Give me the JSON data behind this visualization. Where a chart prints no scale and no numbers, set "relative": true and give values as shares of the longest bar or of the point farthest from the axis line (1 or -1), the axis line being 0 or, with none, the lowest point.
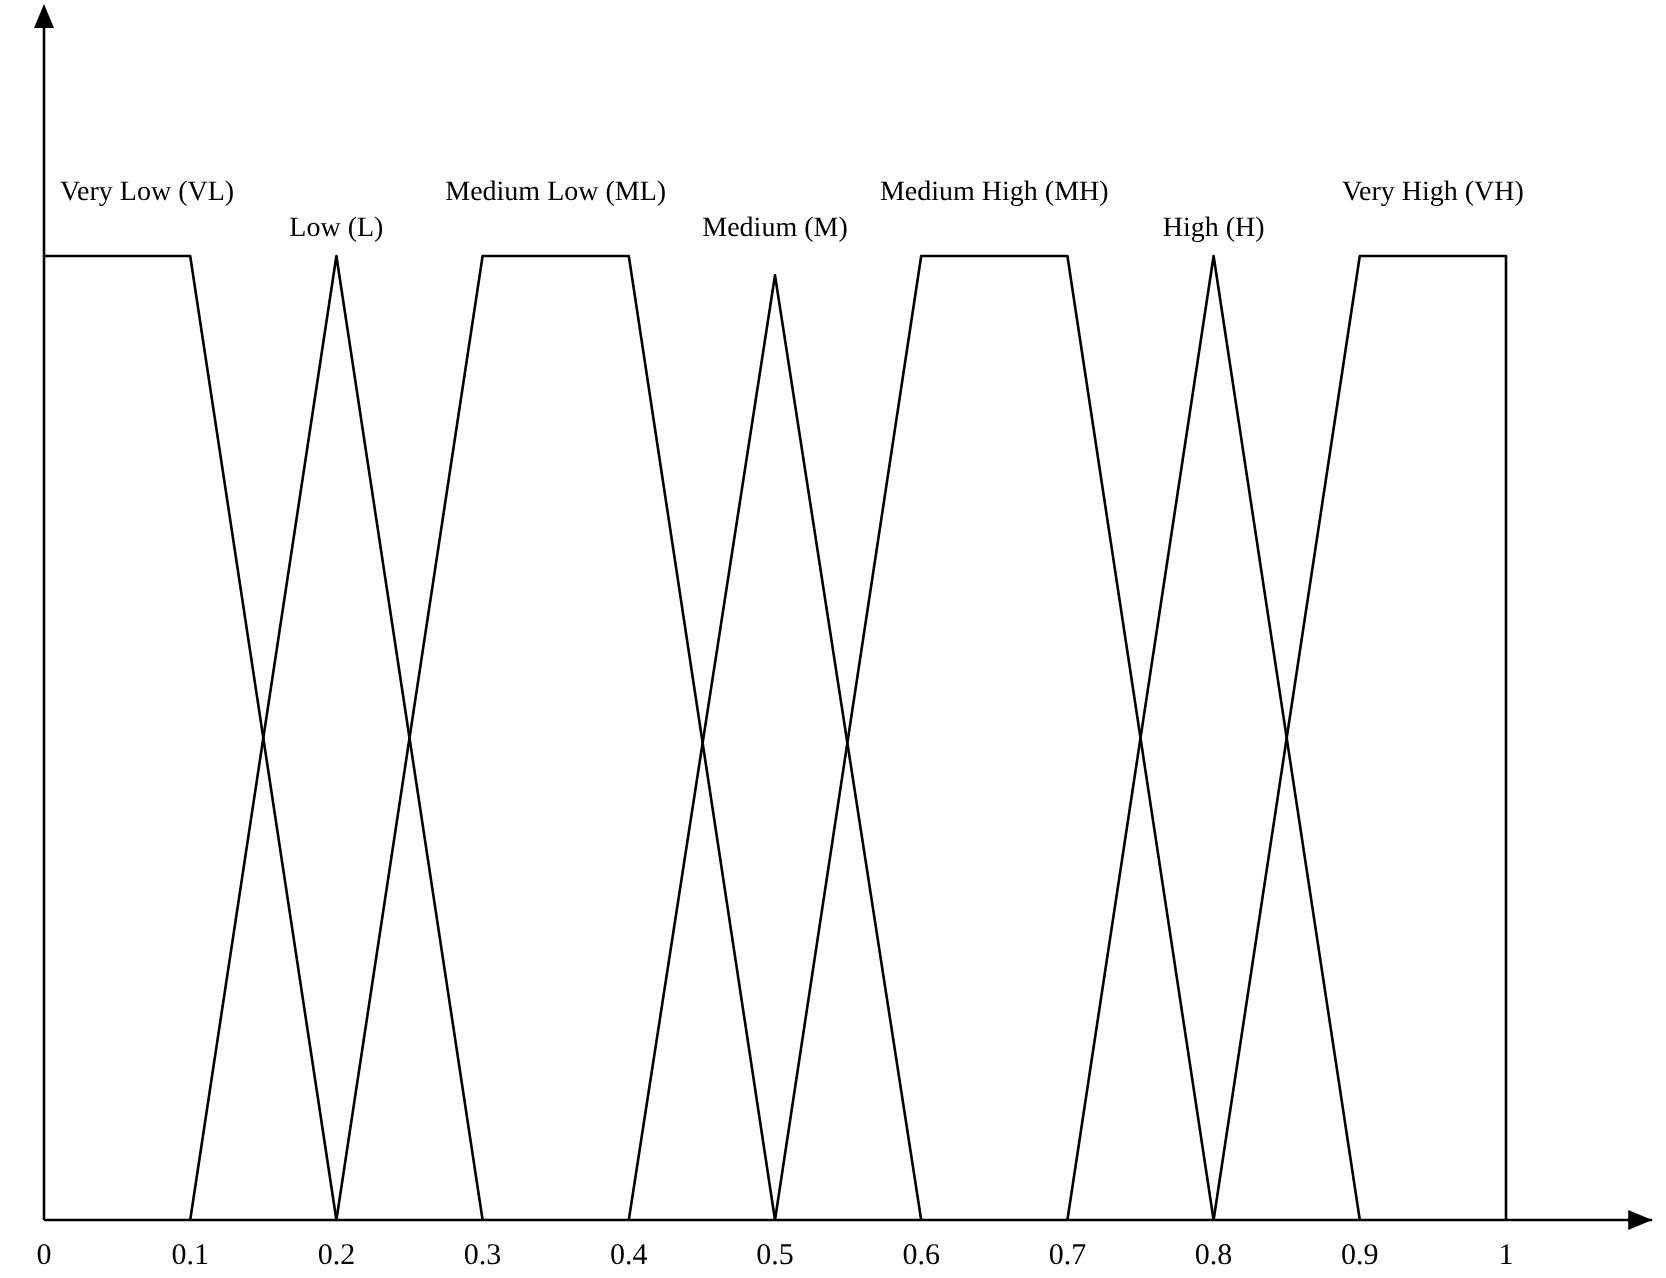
{
  "chart_data": {
    "type": "line",
    "relative": true,
    "xlim": [
      0,
      1.1
    ],
    "xticks": [
      0,
      0.1,
      0.2,
      0.3,
      0.4,
      0.5,
      0.6,
      0.7,
      0.8,
      0.9,
      1
    ],
    "series": [
      {
        "name": "Very Low (VL)",
        "color": "#000000",
        "x": [
          0,
          0.1,
          0.2
        ],
        "values": [
          1,
          1,
          0
        ]
      },
      {
        "name": "Low (L)",
        "color": "#000000",
        "x": [
          0.1,
          0.2,
          0.3
        ],
        "values": [
          0,
          1,
          0
        ]
      },
      {
        "name": "Medium Low (ML)",
        "color": "#000000",
        "x": [
          0.2,
          0.3,
          0.4,
          0.5
        ],
        "values": [
          0,
          1,
          1,
          0
        ]
      },
      {
        "name": "Medium (M)",
        "color": "#000000",
        "x": [
          0.4,
          0.5,
          0.6
        ],
        "values": [
          0,
          0.98,
          0
        ]
      },
      {
        "name": "Medium High (MH)",
        "color": "#000000",
        "x": [
          0.5,
          0.6,
          0.7,
          0.8
        ],
        "values": [
          0,
          1,
          1,
          0
        ]
      },
      {
        "name": "High (H)",
        "color": "#000000",
        "x": [
          0.7,
          0.8,
          0.9
        ],
        "values": [
          0,
          1,
          0
        ]
      },
      {
        "name": "Very High (VH)",
        "color": "#000000",
        "x": [
          0.8,
          0.9,
          1,
          1
        ],
        "values": [
          0,
          1,
          1,
          0
        ]
      }
    ]
  }
}
